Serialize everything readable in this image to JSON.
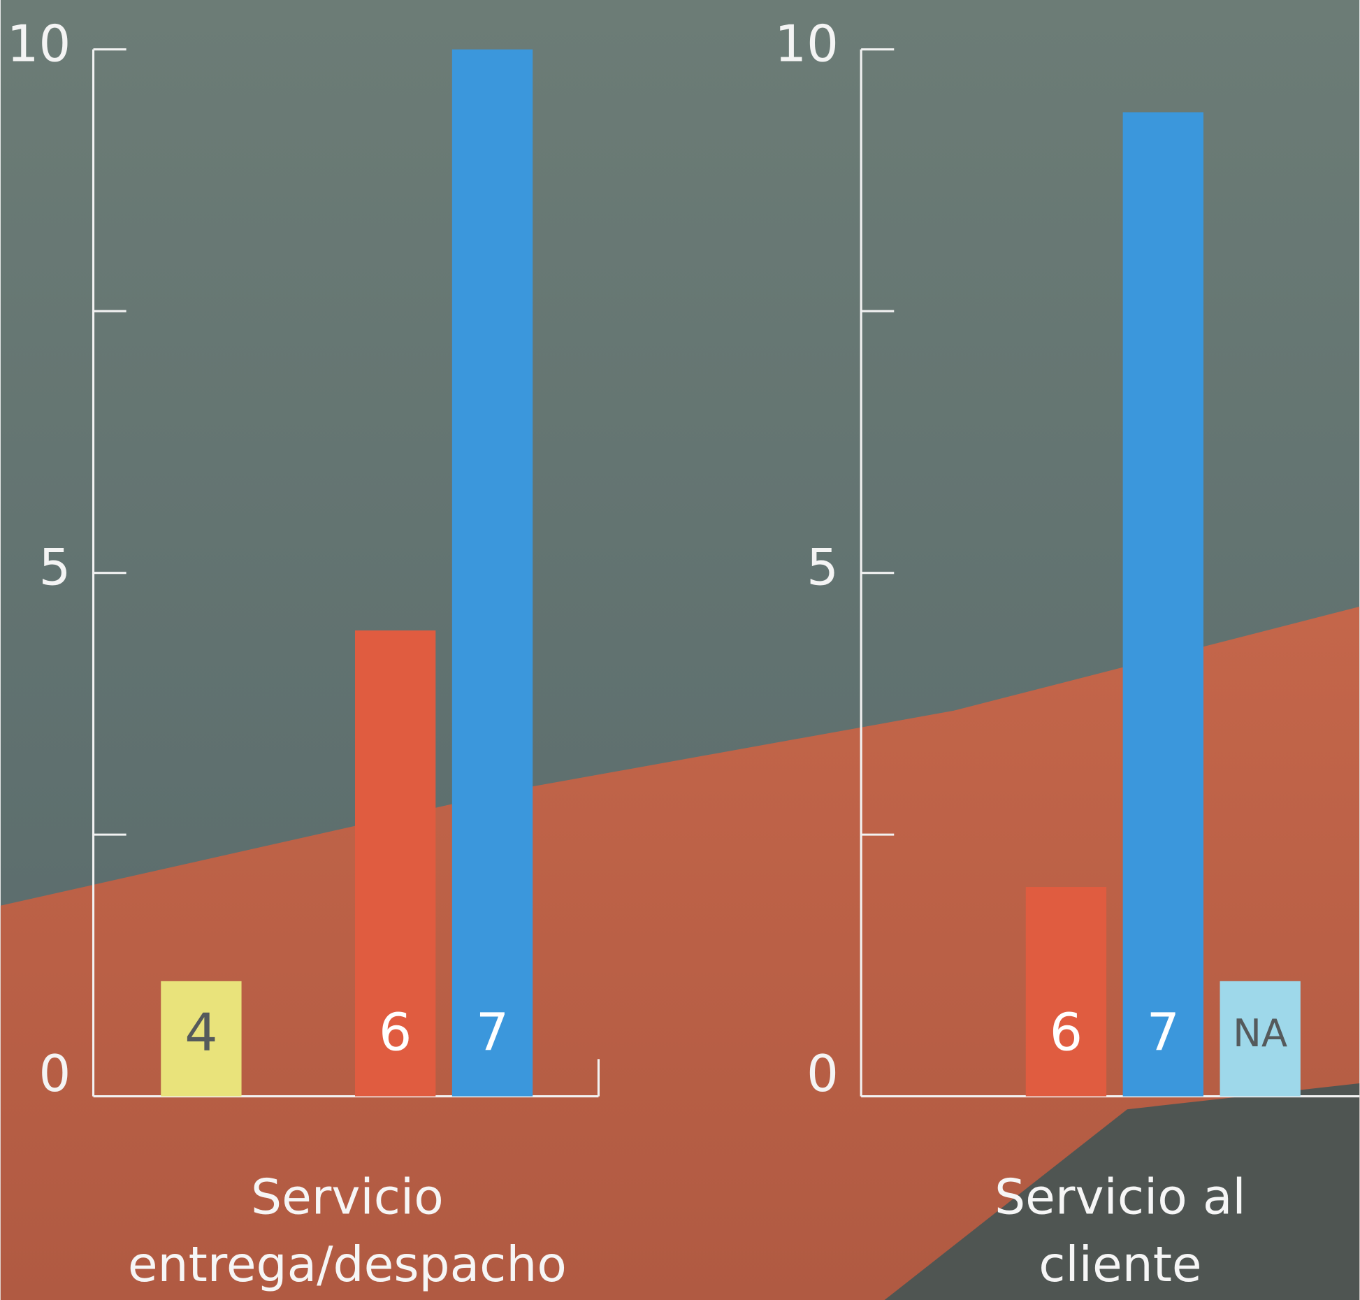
{
  "chart_data": [
    {
      "type": "bar",
      "categories": [
        "4",
        null,
        "6",
        "7"
      ],
      "values": [
        1.1,
        null,
        4.45,
        10
      ],
      "colors": [
        "#e9e37b",
        null,
        "#e05c40",
        "#3b97dc"
      ],
      "xlabel": [
        "Servicio",
        "entrega/despacho"
      ],
      "ylim": [
        0,
        10
      ],
      "yticks": [
        0,
        5,
        10
      ],
      "minor_yticks": [
        2.5,
        7.5
      ]
    },
    {
      "type": "bar",
      "categories": [
        null,
        "6",
        "7",
        "NA"
      ],
      "values": [
        null,
        2.0,
        9.4,
        1.1
      ],
      "colors": [
        null,
        "#e05c40",
        "#3b97dc",
        "#9ed8ea"
      ],
      "xlabel": [
        "Servicio al",
        "cliente"
      ],
      "ylim": [
        0,
        10
      ],
      "yticks": [
        0,
        5,
        10
      ],
      "minor_yticks": [
        2.5,
        7.5
      ]
    }
  ]
}
